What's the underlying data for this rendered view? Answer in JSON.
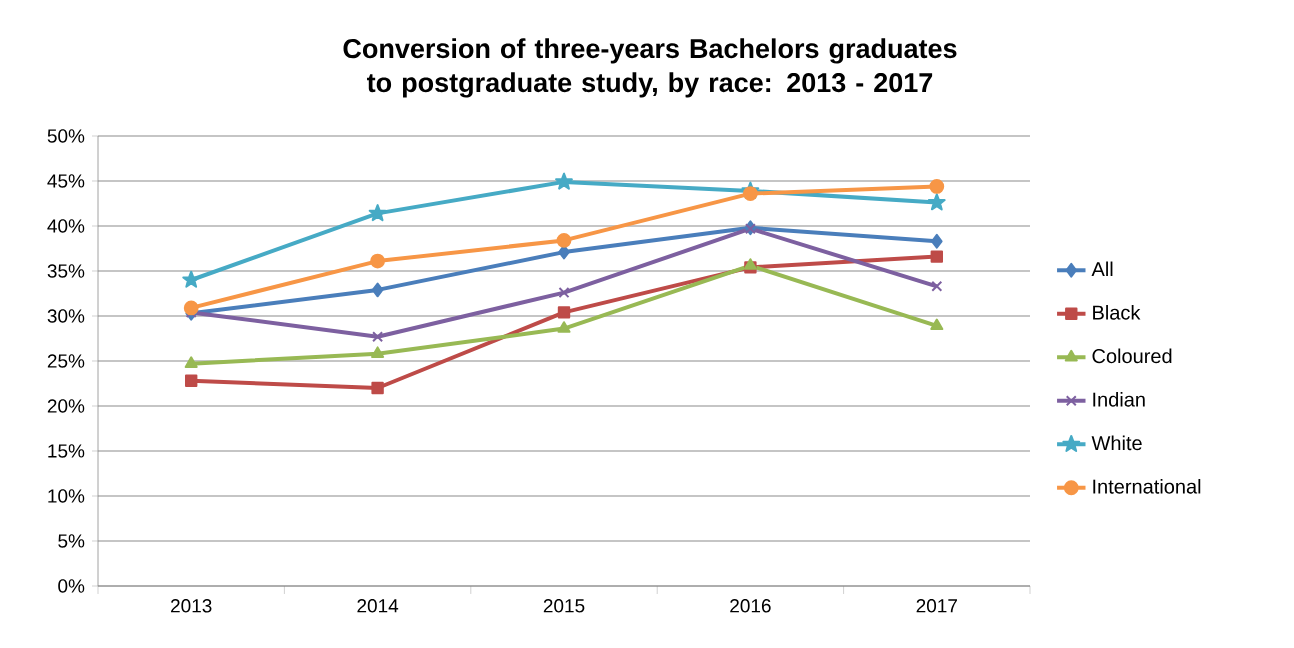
{
  "chart_data": {
    "type": "line",
    "title": "Conversion of three-years Bachelors graduates to postgraduate study, by race: 2013 - 2017",
    "categories": [
      "2013",
      "2014",
      "2015",
      "2016",
      "2017"
    ],
    "series": [
      {
        "name": "All",
        "color": "#4a7ebb",
        "marker": "diamond",
        "values": [
          30.3,
          32.9,
          37.1,
          39.8,
          38.3
        ]
      },
      {
        "name": "Black",
        "color": "#be4b48",
        "marker": "square",
        "values": [
          22.8,
          22.0,
          30.4,
          35.4,
          36.6
        ]
      },
      {
        "name": "Coloured",
        "color": "#98b954",
        "marker": "triangle",
        "values": [
          24.7,
          25.8,
          28.6,
          35.6,
          28.9
        ]
      },
      {
        "name": "Indian",
        "color": "#7d60a0",
        "marker": "cross",
        "values": [
          30.4,
          27.7,
          32.6,
          39.7,
          33.3
        ]
      },
      {
        "name": "White",
        "color": "#46aac5",
        "marker": "star",
        "values": [
          34.0,
          41.4,
          44.9,
          43.9,
          42.6
        ]
      },
      {
        "name": "International",
        "color": "#f79646",
        "marker": "circle",
        "values": [
          30.9,
          36.1,
          38.4,
          43.6,
          44.4
        ]
      }
    ],
    "ylim": [
      0,
      50
    ],
    "yticks": [
      {
        "value": 0,
        "label": "0%"
      },
      {
        "value": 5,
        "label": "5%"
      },
      {
        "value": 10,
        "label": "10%"
      },
      {
        "value": 15,
        "label": "15%"
      },
      {
        "value": 20,
        "label": "20%"
      },
      {
        "value": 25,
        "label": "25%"
      },
      {
        "value": 30,
        "label": "30%"
      },
      {
        "value": 35,
        "label": "35%"
      },
      {
        "value": 40,
        "label": "40%"
      },
      {
        "value": 45,
        "label": "45%"
      },
      {
        "value": 50,
        "label": "50%"
      }
    ],
    "grid": "y",
    "legend": "right",
    "line_style": "solid"
  }
}
